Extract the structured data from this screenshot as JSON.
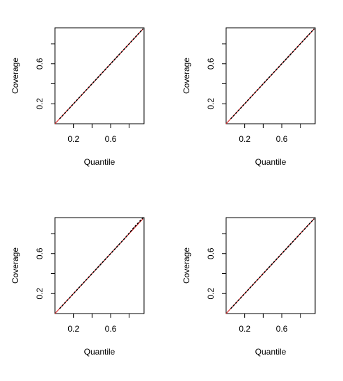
{
  "colors": {
    "reference_line": "#d62728",
    "data_line": "#000000",
    "axis": "#000000",
    "background": "#ffffff"
  },
  "chart_data": [
    {
      "type": "line",
      "title": "",
      "xlabel": "Quantile",
      "ylabel": "Coverage",
      "xlim": [
        0.0,
        0.96
      ],
      "ylim": [
        0.0,
        0.96
      ],
      "x_ticks": [
        0.2,
        0.4,
        0.6,
        0.8
      ],
      "x_tick_labels": [
        "0.2",
        "",
        "0.6",
        ""
      ],
      "y_ticks": [
        0.2,
        0.4,
        0.6,
        0.8
      ],
      "y_tick_labels": [
        "0.2",
        "",
        "0.6",
        ""
      ],
      "grid": false,
      "series": [
        {
          "kind": "reference",
          "x": [
            0.0,
            0.95
          ],
          "y": [
            0.0,
            0.95
          ]
        },
        {
          "kind": "observed",
          "x": [
            0.05,
            0.15,
            0.25,
            0.35,
            0.45,
            0.55,
            0.65,
            0.75,
            0.85,
            0.95
          ],
          "y": [
            0.05,
            0.15,
            0.25,
            0.35,
            0.45,
            0.55,
            0.65,
            0.75,
            0.85,
            0.95
          ]
        }
      ]
    },
    {
      "type": "line",
      "title": "",
      "xlabel": "Quantile",
      "ylabel": "Coverage",
      "xlim": [
        0.0,
        0.96
      ],
      "ylim": [
        0.0,
        0.96
      ],
      "x_ticks": [
        0.2,
        0.4,
        0.6,
        0.8
      ],
      "x_tick_labels": [
        "0.2",
        "",
        "0.6",
        ""
      ],
      "y_ticks": [
        0.2,
        0.4,
        0.6,
        0.8
      ],
      "y_tick_labels": [
        "0.2",
        "",
        "0.6",
        ""
      ],
      "grid": false,
      "series": [
        {
          "kind": "reference",
          "x": [
            0.0,
            0.95
          ],
          "y": [
            0.0,
            0.95
          ]
        },
        {
          "kind": "observed",
          "x": [
            0.05,
            0.15,
            0.25,
            0.35,
            0.45,
            0.55,
            0.65,
            0.75,
            0.85,
            0.95
          ],
          "y": [
            0.05,
            0.15,
            0.25,
            0.35,
            0.45,
            0.55,
            0.65,
            0.75,
            0.85,
            0.95
          ]
        }
      ]
    },
    {
      "type": "line",
      "title": "",
      "xlabel": "Quantile",
      "ylabel": "Coverage",
      "xlim": [
        0.0,
        0.96
      ],
      "ylim": [
        0.0,
        0.96
      ],
      "x_ticks": [
        0.2,
        0.4,
        0.6,
        0.8
      ],
      "x_tick_labels": [
        "0.2",
        "",
        "0.6",
        ""
      ],
      "y_ticks": [
        0.2,
        0.4,
        0.6,
        0.8
      ],
      "y_tick_labels": [
        "0.2",
        "",
        "0.6",
        ""
      ],
      "grid": false,
      "series": [
        {
          "kind": "reference",
          "x": [
            0.0,
            0.95
          ],
          "y": [
            0.0,
            0.95
          ]
        },
        {
          "kind": "observed",
          "x": [
            0.05,
            0.15,
            0.25,
            0.35,
            0.45,
            0.55,
            0.65,
            0.75,
            0.85,
            0.95
          ],
          "y": [
            0.05,
            0.15,
            0.25,
            0.35,
            0.45,
            0.55,
            0.65,
            0.75,
            0.86,
            0.96
          ]
        }
      ]
    },
    {
      "type": "line",
      "title": "",
      "xlabel": "Quantile",
      "ylabel": "Coverage",
      "xlim": [
        0.0,
        0.96
      ],
      "ylim": [
        0.0,
        0.96
      ],
      "x_ticks": [
        0.2,
        0.4,
        0.6,
        0.8
      ],
      "x_tick_labels": [
        "0.2",
        "",
        "0.6",
        ""
      ],
      "y_ticks": [
        0.2,
        0.4,
        0.6,
        0.8
      ],
      "y_tick_labels": [
        "0.2",
        "",
        "0.6",
        ""
      ],
      "grid": false,
      "series": [
        {
          "kind": "reference",
          "x": [
            0.0,
            0.95
          ],
          "y": [
            0.0,
            0.95
          ]
        },
        {
          "kind": "observed",
          "x": [
            0.05,
            0.15,
            0.25,
            0.35,
            0.45,
            0.55,
            0.65,
            0.75,
            0.85,
            0.95
          ],
          "y": [
            0.05,
            0.15,
            0.25,
            0.35,
            0.45,
            0.55,
            0.65,
            0.75,
            0.85,
            0.95
          ]
        }
      ]
    }
  ]
}
